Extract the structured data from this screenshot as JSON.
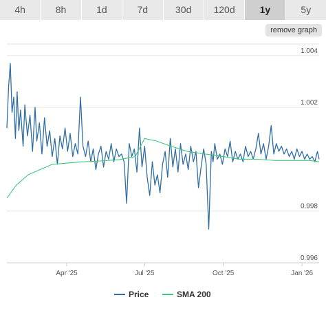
{
  "tabs": [
    {
      "label": "4h",
      "active": false
    },
    {
      "label": "8h",
      "active": false
    },
    {
      "label": "1d",
      "active": false
    },
    {
      "label": "7d",
      "active": false
    },
    {
      "label": "30d",
      "active": false
    },
    {
      "label": "120d",
      "active": false
    },
    {
      "label": "1y",
      "active": true
    },
    {
      "label": "5y",
      "active": false
    }
  ],
  "remove_graph_label": "remove graph",
  "colors": {
    "price": "#2f6ea5",
    "sma": "#3ec97a",
    "grid": "#e6e6e6"
  },
  "chart_data": {
    "type": "line",
    "x_range": [
      "2025-01-21",
      "2026-01-21"
    ],
    "ylim": [
      0.996,
      1.0045
    ],
    "y_ticks": [
      0.996,
      0.998,
      1.002,
      1.004
    ],
    "y_tick_labels": [
      "0.996",
      "0.998",
      "1.002",
      "1.004"
    ],
    "x_ticks": [
      "2025-04-01",
      "2025-07-01",
      "2025-10-01",
      "2026-01-01"
    ],
    "x_tick_labels": [
      "Apr '25",
      "Jul '25",
      "Oct '25",
      "Jan '26"
    ],
    "grid": true,
    "legend": "bottom-center",
    "series": [
      {
        "name": "Price",
        "x": [
          "2025-01-21",
          "2025-01-23",
          "2025-01-25",
          "2025-01-27",
          "2025-01-29",
          "2025-01-31",
          "2025-02-02",
          "2025-02-04",
          "2025-02-06",
          "2025-02-09",
          "2025-02-11",
          "2025-02-14",
          "2025-02-17",
          "2025-02-20",
          "2025-02-23",
          "2025-02-25",
          "2025-02-28",
          "2025-03-03",
          "2025-03-06",
          "2025-03-09",
          "2025-03-12",
          "2025-03-15",
          "2025-03-18",
          "2025-03-21",
          "2025-03-24",
          "2025-03-27",
          "2025-03-30",
          "2025-04-02",
          "2025-04-05",
          "2025-04-08",
          "2025-04-11",
          "2025-04-14",
          "2025-04-17",
          "2025-04-20",
          "2025-04-23",
          "2025-04-26",
          "2025-04-29",
          "2025-05-02",
          "2025-05-05",
          "2025-05-08",
          "2025-05-11",
          "2025-05-14",
          "2025-05-17",
          "2025-05-20",
          "2025-05-23",
          "2025-05-26",
          "2025-05-29",
          "2025-06-01",
          "2025-06-04",
          "2025-06-07",
          "2025-06-10",
          "2025-06-13",
          "2025-06-16",
          "2025-06-19",
          "2025-06-22",
          "2025-06-25",
          "2025-06-28",
          "2025-07-01",
          "2025-07-04",
          "2025-07-07",
          "2025-07-10",
          "2025-07-13",
          "2025-07-16",
          "2025-07-19",
          "2025-07-22",
          "2025-07-25",
          "2025-07-28",
          "2025-07-31",
          "2025-08-03",
          "2025-08-06",
          "2025-08-09",
          "2025-08-12",
          "2025-08-15",
          "2025-08-18",
          "2025-08-21",
          "2025-08-24",
          "2025-08-27",
          "2025-08-30",
          "2025-09-02",
          "2025-09-05",
          "2025-09-08",
          "2025-09-11",
          "2025-09-14",
          "2025-09-17",
          "2025-09-19",
          "2025-09-21",
          "2025-09-24",
          "2025-09-27",
          "2025-09-30",
          "2025-10-03",
          "2025-10-06",
          "2025-10-09",
          "2025-10-12",
          "2025-10-15",
          "2025-10-18",
          "2025-10-21",
          "2025-10-24",
          "2025-10-27",
          "2025-10-30",
          "2025-11-02",
          "2025-11-05",
          "2025-11-08",
          "2025-11-11",
          "2025-11-14",
          "2025-11-17",
          "2025-11-20",
          "2025-11-23",
          "2025-11-26",
          "2025-11-29",
          "2025-12-02",
          "2025-12-05",
          "2025-12-08",
          "2025-12-11",
          "2025-12-14",
          "2025-12-17",
          "2025-12-20",
          "2025-12-23",
          "2025-12-26",
          "2025-12-29",
          "2026-01-01",
          "2026-01-04",
          "2026-01-07",
          "2026-01-10",
          "2026-01-13",
          "2026-01-16",
          "2026-01-19",
          "2026-01-21"
        ],
        "values": [
          1.0012,
          1.0028,
          1.0037,
          1.0018,
          1.0024,
          1.0008,
          1.0026,
          1.0011,
          1.0019,
          1.0005,
          1.0021,
          1.0009,
          1.0017,
          1.0003,
          1.002,
          1.0007,
          1.0014,
          1.0002,
          1.0016,
          1.0005,
          1.0011,
          1.0001,
          1.0008,
          0.9998,
          1.0009,
          1.0004,
          1.0012,
          1.0003,
          1.001,
          1.0001,
          1.0006,
          1.0002,
          1.0024,
          1.0005,
          1.0001,
          1.0007,
          0.9999,
          1.0004,
          0.9996,
          1.0002,
          1.0005,
          0.9997,
          1.0003,
          1.0,
          1.0006,
          0.9999,
          1.0004,
          1.0001,
          1.0002,
          0.9999,
          0.9983,
          1.0006,
          1.0001,
          1.0004,
          0.9995,
          1.0012,
          0.9997,
          1.0005,
          0.9993,
          0.9986,
          0.9999,
          0.999,
          0.9994,
          0.9987,
          0.9998,
          1.0003,
          0.9993,
          1.0008,
          0.9997,
          1.0004,
          0.9995,
          1.0006,
          0.9998,
          1.0002,
          0.9996,
          1.0005,
          0.9999,
          1.0003,
          0.9989,
          0.9997,
          1.0004,
          0.9998,
          0.9973,
          1.0003,
          0.9999,
          1.0006,
          1.0,
          1.0002,
          0.9998,
          1.0004,
          1.0001,
          1.0007,
          0.9999,
          1.0003,
          1.0,
          1.0002,
          0.9999,
          1.0005,
          1.0001,
          1.0003,
          1.0,
          1.0004,
          1.001,
          1.0002,
          1.0006,
          1.0,
          1.0005,
          1.0013,
          1.0002,
          1.0006,
          1.0003,
          1.0005,
          1.0002,
          1.0004,
          1.0001,
          1.0003,
          1.0,
          1.0004,
          1.0001,
          1.0003,
          1.0,
          1.0002,
          1.0,
          1.0001,
          0.9999,
          1.0003,
          1.0
        ]
      },
      {
        "name": "SMA 200",
        "x": [
          "2025-01-21",
          "2025-02-01",
          "2025-02-15",
          "2025-03-01",
          "2025-03-15",
          "2025-04-01",
          "2025-04-20",
          "2025-05-10",
          "2025-06-01",
          "2025-06-20",
          "2025-07-01",
          "2025-07-15",
          "2025-08-01",
          "2025-08-20",
          "2025-09-10",
          "2025-10-01",
          "2025-10-20",
          "2025-11-10",
          "2025-12-01",
          "2025-12-20",
          "2026-01-10",
          "2026-01-21"
        ],
        "values": [
          0.9985,
          0.999,
          0.9994,
          0.9996,
          0.9998,
          0.99985,
          0.9999,
          0.99993,
          0.99998,
          1.0001,
          1.0008,
          1.0007,
          1.0005,
          1.0003,
          1.0002,
          1.0001,
          1.0,
          1.0,
          0.99995,
          0.99995,
          0.99995,
          0.9999
        ]
      }
    ]
  }
}
